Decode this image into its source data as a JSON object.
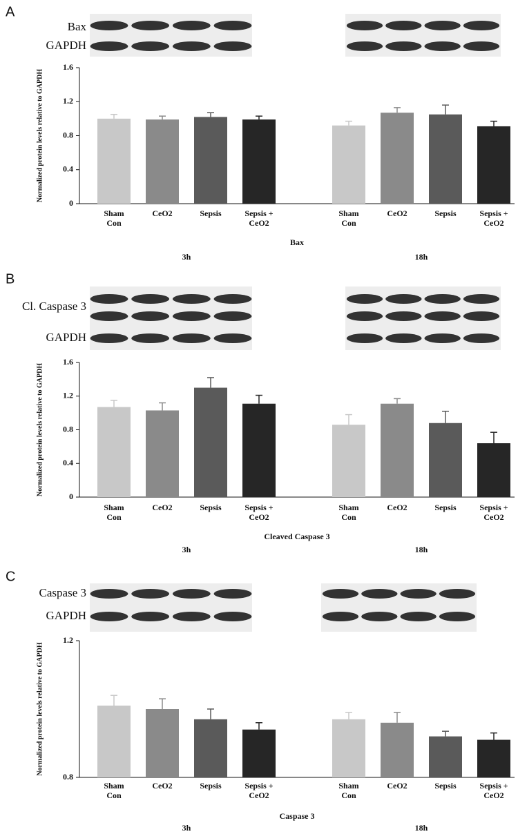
{
  "chart_data": [
    {
      "type": "bar",
      "panel": "A",
      "blot_labels": [
        "Bax",
        "GAPDH"
      ],
      "ylabel": "Normalized protein levels relative to GAPDH",
      "xlabel": "Bax",
      "groups": [
        "3h",
        "18h"
      ],
      "categories": [
        "Sham Con",
        "CeO2",
        "Sepsis",
        "Sepsis + CeO2",
        "Sham Con",
        "CeO2",
        "Sepsis",
        "Sepsis + CeO2"
      ],
      "values": [
        1.0,
        0.99,
        1.02,
        0.99,
        0.92,
        1.07,
        1.05,
        0.91
      ],
      "errors": [
        0.05,
        0.04,
        0.05,
        0.04,
        0.05,
        0.06,
        0.11,
        0.06
      ],
      "colors": [
        "#c8c8c8",
        "#8a8a8a",
        "#5a5a5a",
        "#262626",
        "#c8c8c8",
        "#8a8a8a",
        "#5a5a5a",
        "#262626"
      ],
      "ylim": [
        0,
        1.6
      ],
      "yticks": [
        0,
        0.4,
        0.8,
        1.2,
        1.6
      ]
    },
    {
      "type": "bar",
      "panel": "B",
      "blot_labels": [
        "Cl. Caspase 3",
        "GAPDH"
      ],
      "ylabel": "Normalized protein levels relative to GAPDH",
      "xlabel": "Cleaved  Caspase 3",
      "groups": [
        "3h",
        "18h"
      ],
      "categories": [
        "Sham Con",
        "CeO2",
        "Sepsis",
        "Sepsis + CeO2",
        "Sham Con",
        "CeO2",
        "Sepsis",
        "Sepsis + CeO2"
      ],
      "values": [
        1.07,
        1.03,
        1.3,
        1.11,
        0.86,
        1.11,
        0.88,
        0.64
      ],
      "errors": [
        0.08,
        0.09,
        0.12,
        0.1,
        0.12,
        0.06,
        0.14,
        0.13
      ],
      "colors": [
        "#c8c8c8",
        "#8a8a8a",
        "#5a5a5a",
        "#262626",
        "#c8c8c8",
        "#8a8a8a",
        "#5a5a5a",
        "#262626"
      ],
      "ylim": [
        0,
        1.6
      ],
      "yticks": [
        0,
        0.4,
        0.8,
        1.2,
        1.6
      ]
    },
    {
      "type": "bar",
      "panel": "C",
      "blot_labels": [
        "Caspase 3",
        "GAPDH"
      ],
      "ylabel": "Normalized protein levels relative to GAPDH",
      "xlabel": "Caspase 3",
      "groups": [
        "3h",
        "18h"
      ],
      "categories": [
        "Sham Con",
        "CeO2",
        "Sepsis",
        "Sepsis + CeO2",
        "Sham Con",
        "CeO2",
        "Sepsis",
        "Sepsis + CeO2"
      ],
      "values": [
        1.01,
        1.0,
        0.97,
        0.94,
        0.97,
        0.96,
        0.92,
        0.91
      ],
      "errors": [
        0.03,
        0.03,
        0.03,
        0.02,
        0.02,
        0.03,
        0.015,
        0.02
      ],
      "colors": [
        "#c8c8c8",
        "#8a8a8a",
        "#5a5a5a",
        "#262626",
        "#c8c8c8",
        "#8a8a8a",
        "#5a5a5a",
        "#262626"
      ],
      "ylim": [
        0.8,
        1.2
      ],
      "yticks": [
        0.8,
        1.2
      ]
    }
  ]
}
